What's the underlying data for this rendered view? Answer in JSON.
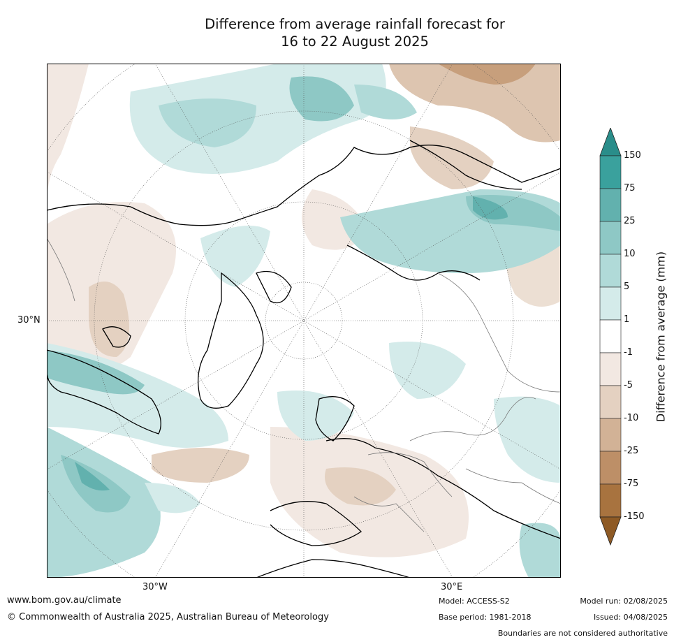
{
  "title": {
    "line1": "Difference from average rainfall forecast for",
    "line2": "16 to 22 August 2025"
  },
  "axis_labels": {
    "lat_left": "30°N",
    "lon_left": "30°W",
    "lon_right": "30°E"
  },
  "colorbar": {
    "title": "Difference from average (mm)",
    "ticks": [
      "150",
      "75",
      "25",
      "10",
      "5",
      "1",
      "-1",
      "-5",
      "-10",
      "-25",
      "-75",
      "-150"
    ],
    "colors": [
      "#2a8d8a",
      "#3aa19d",
      "#62b1ae",
      "#8ec8c5",
      "#b0dad8",
      "#d4ebea",
      "#ffffff",
      "#f2e8e2",
      "#e4d1c1",
      "#d2b296",
      "#bd8f67",
      "#a8733f",
      "#8e5a25"
    ]
  },
  "footer": {
    "website": "www.bom.gov.au/climate",
    "copyright": "© Commonwealth of Australia 2025, Australian Bureau of Meteorology",
    "model": "Model: ACCESS-S2",
    "base_period": "Base period: 1981-2018",
    "model_run": "Model run: 02/08/2025",
    "issued": "Issued: 04/08/2025",
    "disclaimer": "Boundaries are not considered authoritative"
  }
}
